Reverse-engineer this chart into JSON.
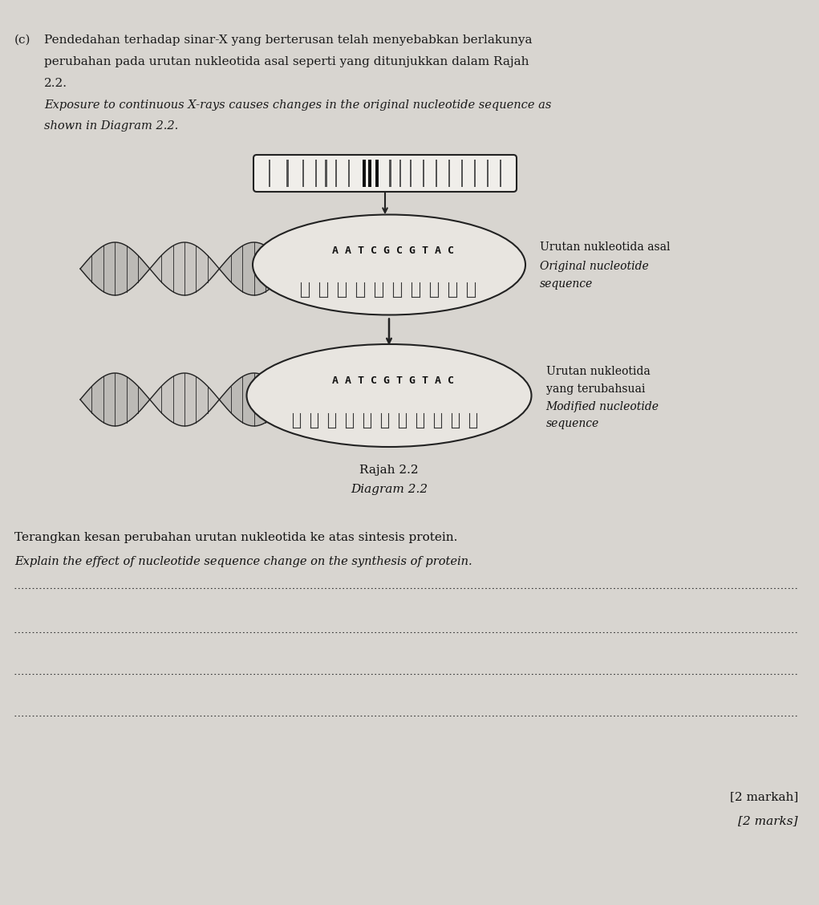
{
  "bg_color": "#d8d5d0",
  "text_color": "#1a1a1a",
  "part_label": "(c)",
  "malay_text_line1": "Pendedahan terhadap sinar-X yang berterusan telah menyebabkan berlakunya",
  "malay_text_line2": "perubahan pada urutan nukleotida asal seperti yang ditunjukkan dalam Rajah",
  "malay_text_line3": "2.2.",
  "english_text_line1": "Exposure to continuous X-rays causes changes in the original nucleotide sequence as",
  "english_text_line2": "shown in Diagram 2.2.",
  "original_seq": "A A T C G C G T A C",
  "modified_seq": "A A T C G T G T A C",
  "label1_line1": "Urutan nukleotida asal",
  "label1_line2": "Original nucleotide",
  "label1_line3": "sequence",
  "label2_line1": "Urutan nukleotida",
  "label2_line2": "yang terubahsuai",
  "label2_line3": "Modified nucleotide",
  "label2_line4": "sequence",
  "rajah_label": "Rajah 2.2",
  "diagram_label": "Diagram 2.2",
  "question_malay": "Terangkan kesan perubahan urutan nukleotida ke atas sintesis protein.",
  "question_english": "Explain the effect of nucleotide sequence change on the synthesis of protein.",
  "marks_malay": "[2 markah]",
  "marks_english": "[2 marks]"
}
